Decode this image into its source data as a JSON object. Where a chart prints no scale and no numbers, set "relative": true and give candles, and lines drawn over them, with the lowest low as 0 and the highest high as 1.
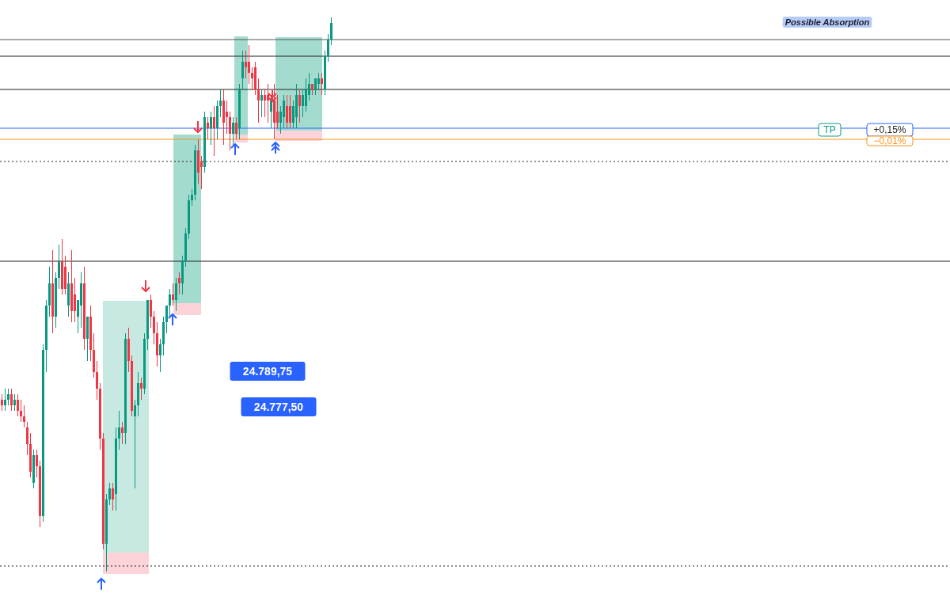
{
  "chart_data": {
    "type": "candlestick",
    "relative": true,
    "categories": [
      null,
      null,
      null,
      null,
      null,
      null,
      null,
      null,
      null,
      null,
      null,
      null,
      null,
      null,
      null,
      null,
      null,
      null,
      null,
      null,
      null,
      null,
      null,
      null,
      null,
      null,
      null,
      null,
      null,
      null,
      null,
      null,
      null,
      null,
      null,
      null,
      null,
      null,
      null,
      null,
      null,
      null,
      null,
      null,
      null,
      null,
      null,
      null,
      null,
      null,
      null,
      null,
      null,
      null,
      null,
      null,
      null,
      null,
      null,
      null,
      null,
      null,
      null,
      null,
      null,
      null,
      null,
      null,
      null,
      null,
      null,
      null,
      null,
      null,
      null,
      null,
      null,
      null,
      null,
      null,
      null,
      null,
      null,
      null,
      null,
      null,
      null,
      null,
      null,
      null,
      null,
      null,
      null,
      null,
      null,
      null,
      null,
      null,
      null,
      null,
      null,
      null,
      null,
      null,
      null
    ],
    "ohlc": [
      [
        0.31,
        0.32,
        0.29,
        0.3
      ],
      [
        0.3,
        0.33,
        0.29,
        0.31
      ],
      [
        0.31,
        0.33,
        0.3,
        0.32
      ],
      [
        0.32,
        0.33,
        0.29,
        0.3
      ],
      [
        0.3,
        0.32,
        0.29,
        0.31
      ],
      [
        0.31,
        0.32,
        0.28,
        0.29
      ],
      [
        0.29,
        0.31,
        0.27,
        0.28
      ],
      [
        0.28,
        0.3,
        0.26,
        0.27
      ],
      [
        0.26,
        0.27,
        0.21,
        0.23
      ],
      [
        0.23,
        0.25,
        0.17,
        0.18
      ],
      [
        0.16,
        0.22,
        0.15,
        0.21
      ],
      [
        0.21,
        0.22,
        0.17,
        0.19
      ],
      [
        0.19,
        0.2,
        0.08,
        0.1
      ],
      [
        0.1,
        0.41,
        0.09,
        0.4
      ],
      [
        0.4,
        0.49,
        0.36,
        0.48
      ],
      [
        0.48,
        0.55,
        0.46,
        0.52
      ],
      [
        0.52,
        0.58,
        0.43,
        0.46
      ],
      [
        0.46,
        0.54,
        0.44,
        0.53
      ],
      [
        0.53,
        0.59,
        0.51,
        0.56
      ],
      [
        0.56,
        0.6,
        0.5,
        0.51
      ],
      [
        0.55,
        0.57,
        0.5,
        0.51
      ],
      [
        0.48,
        0.54,
        0.46,
        0.52
      ],
      [
        0.52,
        0.58,
        0.45,
        0.47
      ],
      [
        0.5,
        0.53,
        0.45,
        0.47
      ],
      [
        0.46,
        0.49,
        0.43,
        0.49
      ],
      [
        0.48,
        0.54,
        0.44,
        0.52
      ],
      [
        0.52,
        0.55,
        0.4,
        0.42
      ],
      [
        0.42,
        0.46,
        0.38,
        0.46
      ],
      [
        0.46,
        0.48,
        0.38,
        0.4
      ],
      [
        0.4,
        0.43,
        0.35,
        0.36
      ],
      [
        0.36,
        0.38,
        0.31,
        0.33
      ],
      [
        0.33,
        0.34,
        0.22,
        0.24
      ],
      [
        0.24,
        0.25,
        0.04,
        0.05
      ],
      [
        0.05,
        0.14,
        0,
        0.13
      ],
      [
        0.13,
        0.16,
        0.12,
        0.15
      ],
      [
        0.15,
        0.16,
        0.11,
        0.13
      ],
      [
        0.14,
        0.26,
        0.11,
        0.24
      ],
      [
        0.24,
        0.29,
        0.22,
        0.26
      ],
      [
        0.26,
        0.27,
        0.23,
        0.25
      ],
      [
        0.25,
        0.43,
        0.23,
        0.42
      ],
      [
        0.42,
        0.44,
        0.36,
        0.38
      ],
      [
        0.38,
        0.39,
        0.28,
        0.29
      ],
      [
        0.28,
        0.31,
        0.15,
        0.3
      ],
      [
        0.3,
        0.36,
        0.28,
        0.34
      ],
      [
        0.34,
        0.35,
        0.31,
        0.33
      ],
      [
        0.33,
        0.43,
        0.32,
        0.42
      ],
      [
        0.42,
        0.49,
        0.4,
        0.49
      ],
      [
        0.49,
        0.5,
        0.44,
        0.46
      ],
      [
        0.46,
        0.47,
        0.41,
        0.43
      ],
      [
        0.43,
        0.45,
        0.37,
        0.39
      ],
      [
        0.39,
        0.42,
        0.36,
        0.41
      ],
      [
        0.41,
        0.46,
        0.39,
        0.45
      ],
      [
        0.45,
        0.48,
        0.43,
        0.48
      ],
      [
        0.48,
        0.51,
        0.46,
        0.5
      ],
      [
        0.5,
        0.52,
        0.48,
        0.49
      ],
      [
        0.49,
        0.53,
        0.47,
        0.52
      ],
      [
        0.53,
        0.54,
        0.5,
        0.52
      ],
      [
        0.52,
        0.57,
        0.5,
        0.56
      ],
      [
        0.56,
        0.62,
        0.55,
        0.61
      ],
      [
        0.61,
        0.68,
        0.6,
        0.67
      ],
      [
        0.67,
        0.69,
        0.66,
        0.68
      ],
      [
        0.68,
        0.77,
        0.67,
        0.76
      ],
      [
        0.76,
        0.78,
        0.7,
        0.72
      ],
      [
        0.74,
        0.75,
        0.69,
        0.73
      ],
      [
        0.73,
        0.83,
        0.72,
        0.82
      ],
      [
        0.81,
        0.82,
        0.78,
        0.8
      ],
      [
        0.8,
        0.83,
        0.77,
        0.82
      ],
      [
        0.82,
        0.84,
        0.75,
        0.8
      ],
      [
        0.8,
        0.85,
        0.78,
        0.84
      ],
      [
        0.84,
        0.87,
        0.82,
        0.85
      ],
      [
        0.85,
        0.87,
        0.77,
        0.81
      ],
      [
        0.83,
        0.85,
        0.79,
        0.82
      ],
      [
        0.82,
        0.83,
        0.76,
        0.79
      ],
      [
        0.79,
        0.82,
        0.77,
        0.81
      ],
      [
        0.81,
        0.82,
        0.78,
        0.79
      ],
      [
        0.8,
        0.88,
        0.78,
        0.87
      ],
      [
        0.89,
        0.94,
        0.87,
        0.92
      ],
      [
        0.92,
        0.94,
        0.89,
        0.91
      ],
      [
        0.92,
        0.95,
        0.88,
        0.9
      ],
      [
        0.9,
        0.91,
        0.87,
        0.89
      ],
      [
        0.91,
        0.92,
        0.86,
        0.87
      ],
      [
        0.87,
        0.89,
        0.81,
        0.85
      ],
      [
        0.85,
        0.87,
        0.82,
        0.86
      ],
      [
        0.86,
        0.87,
        0.82,
        0.85
      ],
      [
        0.86,
        0.88,
        0.81,
        0.85
      ],
      [
        0.83,
        0.86,
        0.8,
        0.85
      ],
      [
        0.85,
        0.88,
        0.78,
        0.81
      ],
      [
        0.83,
        0.86,
        0.8,
        0.81
      ],
      [
        0.81,
        0.84,
        0.79,
        0.83
      ],
      [
        0.82,
        0.86,
        0.8,
        0.85
      ],
      [
        0.84,
        0.86,
        0.8,
        0.81
      ],
      [
        0.84,
        0.86,
        0.8,
        0.81
      ],
      [
        0.81,
        0.85,
        0.8,
        0.84
      ],
      [
        0.82,
        0.88,
        0.8,
        0.86
      ],
      [
        0.86,
        0.87,
        0.81,
        0.84
      ],
      [
        0.84,
        0.87,
        0.82,
        0.86
      ],
      [
        0.84,
        0.89,
        0.83,
        0.87
      ],
      [
        0.86,
        0.9,
        0.85,
        0.88
      ],
      [
        0.88,
        0.88,
        0.86,
        0.87
      ],
      [
        0.87,
        0.89,
        0.86,
        0.89
      ],
      [
        0.88,
        0.9,
        0.87,
        0.89
      ],
      [
        0.89,
        0.9,
        0.86,
        0.88
      ],
      [
        0.87,
        0.94,
        0.86,
        0.93
      ],
      [
        0.93,
        0.97,
        0.92,
        0.96
      ],
      [
        0.96,
        1,
        0.95,
        0.99
      ]
    ],
    "ref_lines": [
      {
        "axis": "y",
        "value": 0.96,
        "color": "#555555",
        "line_style": "solid"
      },
      {
        "axis": "y",
        "value": 0.93,
        "color": "#222222",
        "line_style": "solid"
      },
      {
        "axis": "y",
        "value": 0.87,
        "color": "#222222",
        "line_style": "solid"
      },
      {
        "axis": "y",
        "value": 0.56,
        "color": "#222222",
        "line_style": "solid"
      },
      {
        "axis": "y",
        "value": 0.8,
        "color": "#2962ff",
        "line_style": "solid"
      },
      {
        "axis": "y",
        "value": 0.78,
        "color": "#f7931a",
        "line_style": "solid"
      },
      {
        "axis": "y",
        "value": 0.74,
        "color": "#222222",
        "line_style": "dotted"
      },
      {
        "axis": "y",
        "value": 0.01,
        "color": "#222222",
        "line_style": "dotted"
      }
    ],
    "annotations": [
      "Possible Absorption",
      "24.789,75",
      "24.777,50",
      "TP",
      "+0,15%",
      "−0,01%"
    ]
  }
}
